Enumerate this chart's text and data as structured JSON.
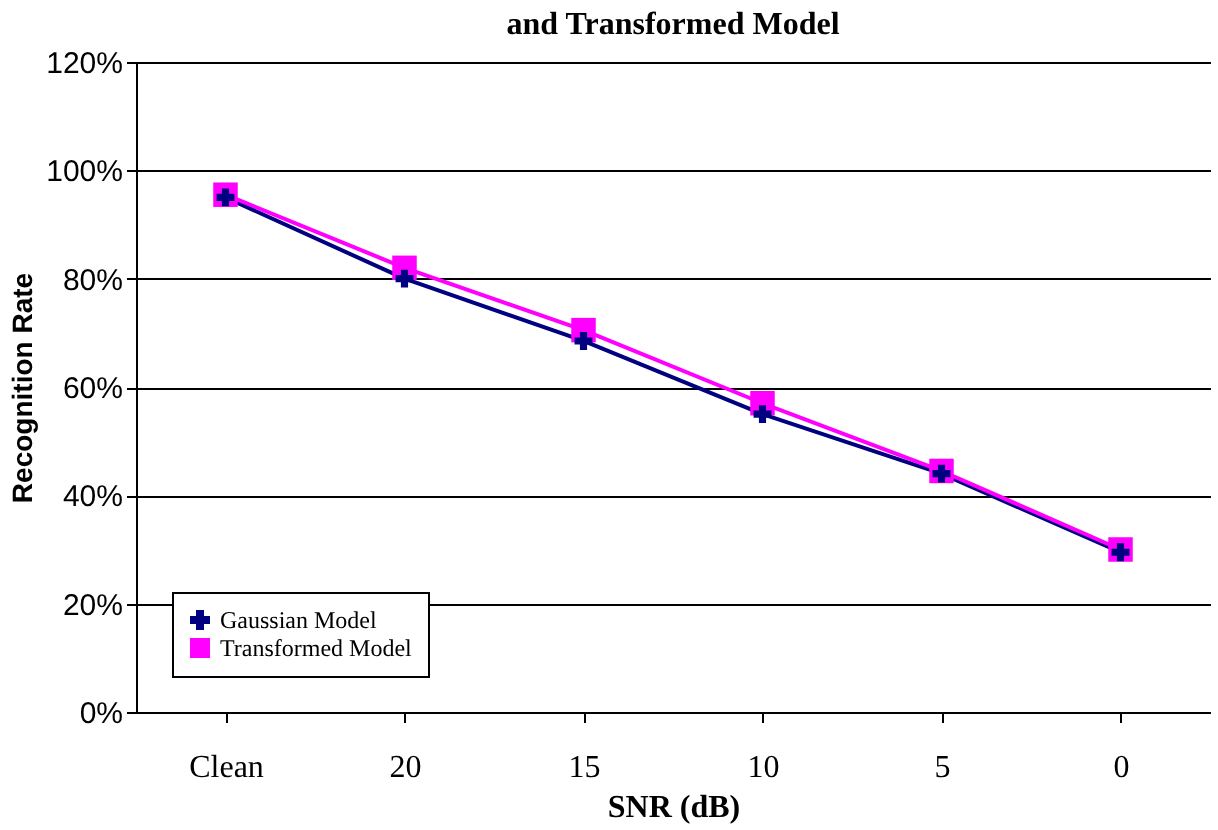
{
  "chart_data": {
    "type": "line",
    "title": "and Transformed Model",
    "xlabel": "SNR (dB)",
    "ylabel": "Recognition Rate",
    "categories": [
      "Clean",
      "20",
      "15",
      "10",
      "5",
      "0"
    ],
    "series": [
      {
        "name": "Gaussian Model",
        "color": "#000080",
        "marker": "cross",
        "values": [
          95,
          80,
          68.5,
          55,
          44,
          29.5
        ]
      },
      {
        "name": "Transformed Model",
        "color": "#ff00ff",
        "marker": "square",
        "values": [
          95.5,
          82,
          70.5,
          57,
          44.5,
          30
        ]
      }
    ],
    "ylim": [
      0,
      120
    ],
    "yticks": [
      {
        "value": 0,
        "label": "0%"
      },
      {
        "value": 20,
        "label": "20%"
      },
      {
        "value": 40,
        "label": "40%"
      },
      {
        "value": 60,
        "label": "60%"
      },
      {
        "value": 80,
        "label": "80%"
      },
      {
        "value": 100,
        "label": "100%"
      },
      {
        "value": 120,
        "label": "120%"
      }
    ],
    "grid": "y",
    "legend": "bottom left",
    "line_style": "solid"
  }
}
